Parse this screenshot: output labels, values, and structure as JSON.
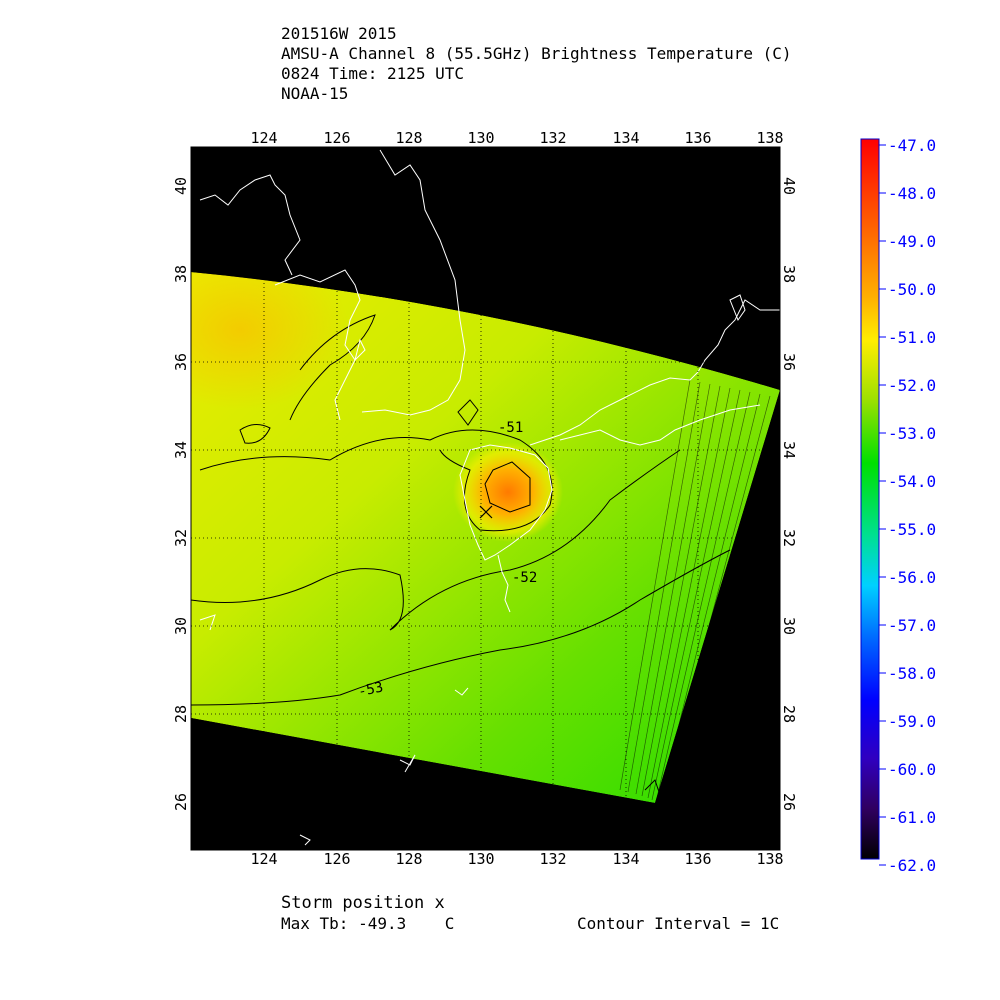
{
  "header": {
    "storm_id": "201516W 2015",
    "product": "AMSU-A Channel 8 (55.5GHz) Brightness Temperature (C)",
    "time": "0824 Time: 2125 UTC",
    "satellite": "NOAA-15"
  },
  "map": {
    "lon_ticks": [
      "124",
      "126",
      "128",
      "130",
      "132",
      "134",
      "136",
      "138"
    ],
    "lat_ticks": [
      "26",
      "28",
      "30",
      "32",
      "34",
      "36",
      "38",
      "40"
    ],
    "contour_labels": [
      "-51",
      "-52",
      "-53"
    ],
    "storm_marker": "x",
    "colors": {
      "background": "#000000",
      "coastline": "#ffffff",
      "contour": "#000000"
    }
  },
  "colorbar": {
    "labels": [
      "-47.0",
      "-48.0",
      "-49.0",
      "-50.0",
      "-51.0",
      "-52.0",
      "-53.0",
      "-54.0",
      "-55.0",
      "-56.0",
      "-57.0",
      "-58.0",
      "-59.0",
      "-60.0",
      "-61.0",
      "-62.0"
    ],
    "label_color": "#0000ff",
    "colors": [
      "#ff0000",
      "#ff8000",
      "#ffff00",
      "#00e000",
      "#00e0ff",
      "#0000ff",
      "#400080",
      "#000000"
    ]
  },
  "footer": {
    "storm_position": "Storm position x",
    "max_tb_label": "Max Tb: -49.3    C",
    "contour_interval": "Contour Interval = 1C"
  }
}
